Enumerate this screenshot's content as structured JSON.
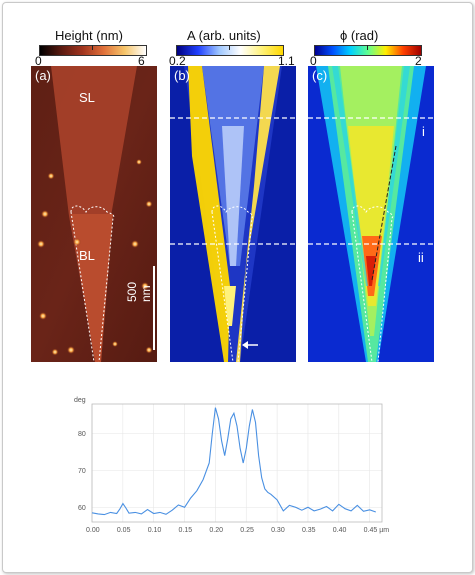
{
  "panels": [
    {
      "label": "(a)",
      "cbar_title": "Height (nm)",
      "cbar_min": "0",
      "cbar_max": "6",
      "annotations": {
        "sl": "SL",
        "bl": "BL",
        "scalebar": "500 nm"
      }
    },
    {
      "label": "(b)",
      "cbar_title": "A (arb. units)",
      "cbar_min": "0.2",
      "cbar_max": "1.1"
    },
    {
      "label": "(c)",
      "cbar_title": "ϕ (rad)",
      "cbar_min": "0",
      "cbar_max": "2",
      "annotations": {
        "line_i": "i",
        "line_ii": "ii"
      }
    }
  ],
  "colors": {
    "height_map": [
      "#000000",
      "#5a1a10",
      "#a0341e",
      "#e0703a",
      "#f6c56a",
      "#ffffff"
    ],
    "amplitude_map": [
      "#000080",
      "#2040ff",
      "#a0c8ff",
      "#ffffff",
      "#fff27a",
      "#ffd800"
    ],
    "phase_map": [
      "#000090",
      "#0050ff",
      "#00d0ff",
      "#60ff90",
      "#ffee00",
      "#ff4000",
      "#a00000"
    ],
    "profile_line": "#4a90e2"
  },
  "chart_data": {
    "type": "line",
    "ylabel": "deg",
    "xlabel_unit": "µm",
    "xlim": [
      0.0,
      0.47
    ],
    "ylim": [
      56,
      88
    ],
    "x_ticks": [
      "0.00",
      "0.05",
      "0.10",
      "0.15",
      "0.20",
      "0.25",
      "0.30",
      "0.35",
      "0.40",
      "0.45 µm"
    ],
    "y_ticks": [
      "60",
      "70",
      "80"
    ],
    "grid": true,
    "series": [
      {
        "x": [
          0.0,
          0.01,
          0.02,
          0.03,
          0.04,
          0.045,
          0.05,
          0.055,
          0.06,
          0.07,
          0.08,
          0.09,
          0.1,
          0.11,
          0.12,
          0.13,
          0.14,
          0.15,
          0.16,
          0.17,
          0.18,
          0.19,
          0.195,
          0.2,
          0.205,
          0.21,
          0.215,
          0.22,
          0.225,
          0.23,
          0.235,
          0.24,
          0.245,
          0.25,
          0.255,
          0.26,
          0.265,
          0.27,
          0.275,
          0.28,
          0.285,
          0.29,
          0.3,
          0.31,
          0.32,
          0.33,
          0.34,
          0.35,
          0.36,
          0.37,
          0.38,
          0.39,
          0.4,
          0.41,
          0.42,
          0.43,
          0.44,
          0.45,
          0.46
        ],
        "y": [
          58.5,
          58.2,
          58.0,
          58.6,
          58.3,
          59.5,
          61.0,
          59.8,
          58.4,
          58.6,
          58.2,
          59.4,
          58.3,
          58.6,
          58.1,
          59.2,
          60.6,
          60.0,
          62.5,
          64.5,
          67.5,
          72.0,
          80.0,
          87.0,
          84.0,
          78.0,
          74.0,
          78.5,
          84.0,
          85.5,
          82.0,
          76.0,
          72.0,
          76.0,
          82.0,
          86.5,
          83.0,
          74.0,
          68.0,
          65.0,
          64.0,
          63.5,
          62.0,
          59.0,
          60.5,
          60.0,
          59.2,
          60.0,
          59.0,
          59.5,
          60.2,
          59.0,
          60.8,
          59.6,
          59.0,
          60.5,
          58.9,
          59.3,
          58.7
        ]
      }
    ]
  }
}
